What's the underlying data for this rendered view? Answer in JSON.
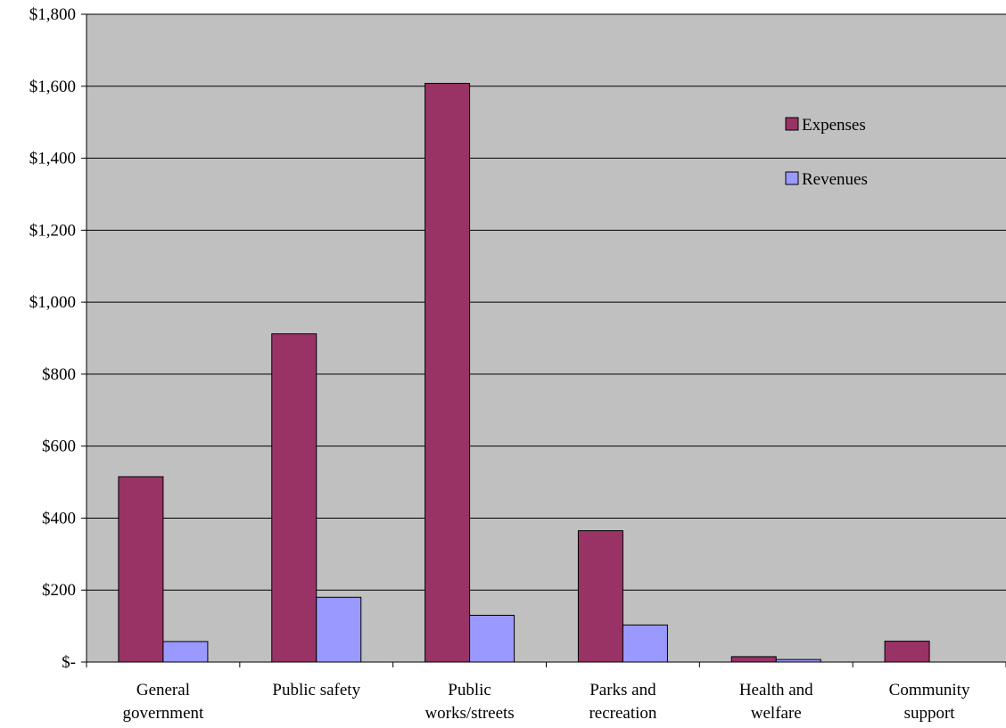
{
  "chart_data": {
    "type": "bar",
    "title": "",
    "xlabel": "",
    "ylabel": "",
    "ylim": [
      0,
      1800
    ],
    "y_ticks": [
      0,
      200,
      400,
      600,
      800,
      1000,
      1200,
      1400,
      1600,
      1800
    ],
    "y_tick_labels": [
      "$-",
      "$200",
      "$400",
      "$600",
      "$800",
      "$1,000",
      "$1,200",
      "$1,400",
      "$1,600",
      "$1,800"
    ],
    "categories": [
      [
        "General",
        "government"
      ],
      [
        "Public safety"
      ],
      [
        "Public",
        "works/streets"
      ],
      [
        "Parks and",
        "recreation"
      ],
      [
        "Health and",
        "welfare"
      ],
      [
        "Community",
        "support"
      ]
    ],
    "series": [
      {
        "name": "Expenses",
        "color": "#993366",
        "values": [
          515,
          912,
          1608,
          365,
          15,
          58
        ]
      },
      {
        "name": "Revenues",
        "color": "#9999ff",
        "values": [
          57,
          180,
          130,
          103,
          7,
          0
        ]
      }
    ],
    "grid": true,
    "legend_position": "top-right",
    "plot_background": "#c0c0c0"
  }
}
